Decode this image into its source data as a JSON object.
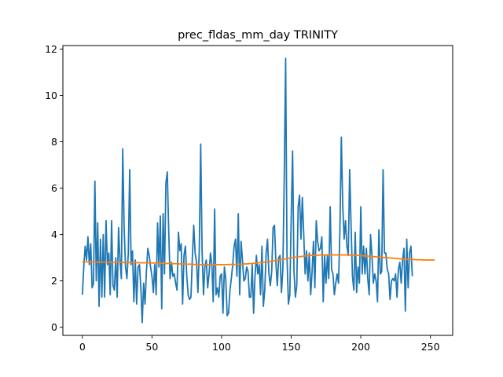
{
  "chart_data": {
    "type": "line",
    "title": "prec_fldas_mm_day TRINITY",
    "xlabel": "",
    "ylabel": "",
    "xlim": [
      -14,
      266
    ],
    "ylim": [
      -0.35,
      12.15
    ],
    "xticks": [
      0,
      50,
      100,
      150,
      200,
      250
    ],
    "yticks": [
      0,
      2,
      4,
      6,
      8,
      10,
      12
    ],
    "grid": false,
    "colors": {
      "raw": "#1f77b4",
      "trend": "#ff7f0e"
    },
    "series": [
      {
        "values": [
          1.4,
          2.6,
          3.5,
          2.9,
          3.9,
          2.7,
          3.6,
          1.7,
          1.9,
          6.3,
          2.0,
          4.5,
          0.9,
          3.8,
          1.3,
          4.0,
          1.3,
          4.6,
          2.7,
          3.2,
          1.4,
          4.6,
          1.8,
          1.6,
          3.0,
          1.3,
          4.3,
          2.9,
          2.1,
          7.7,
          4.3,
          2.6,
          2.1,
          3.2,
          6.8,
          2.7,
          3.3,
          1.1,
          2.9,
          1.0,
          2.6,
          2.7,
          1.7,
          0.2,
          1.9,
          1.0,
          2.4,
          3.4,
          3.1,
          2.6,
          2.2,
          1.5,
          2.7,
          1.4,
          4.5,
          2.6,
          4.8,
          0.8,
          4.9,
          2.3,
          6.2,
          6.7,
          4.2,
          2.1,
          2.8,
          2.2,
          2.3,
          1.9,
          1.6,
          4.1,
          3.3,
          3.6,
          1.0,
          3.1,
          3.5,
          2.2,
          1.4,
          1.2,
          1.3,
          3.0,
          4.4,
          3.2,
          2.8,
          1.5,
          3.4,
          7.9,
          3.3,
          1.4,
          2.6,
          2.9,
          1.7,
          2.3,
          3.2,
          2.7,
          1.1,
          5.1,
          1.4,
          1.7,
          1.3,
          2.2,
          2.3,
          0.6,
          2.6,
          2.1,
          0.5,
          0.6,
          1.6,
          2.1,
          2.7,
          3.5,
          3.8,
          2.2,
          4.9,
          1.4,
          3.7,
          2.9,
          2.0,
          2.1,
          2.6,
          2.4,
          1.3,
          1.3,
          2.7,
          0.6,
          2.2,
          3.1,
          2.3,
          2.7,
          1.4,
          3.5,
          0.9,
          1.6,
          3.2,
          3.8,
          2.3,
          1.8,
          2.4,
          4.3,
          4.4,
          2.8,
          1.8,
          3.0,
          3.1,
          1.5,
          2.5,
          6.4,
          11.6,
          3.0,
          1.0,
          1.4,
          4.7,
          7.6,
          2.4,
          1.3,
          1.8,
          5.2,
          5.7,
          3.8,
          5.6,
          4.0,
          2.3,
          3.3,
          2.0,
          3.2,
          1.4,
          2.4,
          3.7,
          1.7,
          4.6,
          3.7,
          3.3,
          3.4,
          3.9,
          1.1,
          3.1,
          1.9,
          3.1,
          2.1,
          5.2,
          2.5,
          2.3,
          1.4,
          1.9,
          2.3,
          1.9,
          4.2,
          8.2,
          5.3,
          3.8,
          4.6,
          3.5,
          3.1,
          6.8,
          4.4,
          2.2,
          1.6,
          4.1,
          1.5,
          2.6,
          1.9,
          5.2,
          2.3,
          3.5,
          2.3,
          3.4,
          2.1,
          1.4,
          4.0,
          3.1,
          1.9,
          2.3,
          2.0,
          1.1,
          4.2,
          2.3,
          2.4,
          6.8,
          3.2,
          3.2,
          2.5,
          2.3,
          1.2,
          2.0,
          2.1,
          2.0,
          2.3,
          1.3,
          2.5,
          2.8,
          1.9,
          2.9,
          3.4,
          0.7,
          3.8,
          1.7,
          3.2,
          3.5,
          2.2
        ]
      },
      {
        "values": [
          2.82,
          2.82,
          2.82,
          2.82,
          2.82,
          2.82,
          2.82,
          2.82,
          2.82,
          2.82,
          2.81,
          2.81,
          2.81,
          2.81,
          2.81,
          2.81,
          2.81,
          2.81,
          2.81,
          2.81,
          2.8,
          2.8,
          2.8,
          2.8,
          2.8,
          2.8,
          2.8,
          2.8,
          2.8,
          2.8,
          2.79,
          2.79,
          2.79,
          2.79,
          2.79,
          2.79,
          2.79,
          2.79,
          2.79,
          2.79,
          2.78,
          2.78,
          2.78,
          2.78,
          2.78,
          2.78,
          2.78,
          2.78,
          2.78,
          2.78,
          2.77,
          2.77,
          2.77,
          2.77,
          2.77,
          2.76,
          2.76,
          2.76,
          2.76,
          2.76,
          2.75,
          2.75,
          2.75,
          2.75,
          2.75,
          2.74,
          2.74,
          2.74,
          2.74,
          2.74,
          2.73,
          2.73,
          2.73,
          2.73,
          2.73,
          2.72,
          2.72,
          2.72,
          2.72,
          2.72,
          2.71,
          2.71,
          2.71,
          2.71,
          2.71,
          2.7,
          2.7,
          2.7,
          2.7,
          2.7,
          2.7,
          2.7,
          2.7,
          2.7,
          2.7,
          2.7,
          2.7,
          2.7,
          2.7,
          2.7,
          2.7,
          2.7,
          2.7,
          2.7,
          2.7,
          2.7,
          2.71,
          2.71,
          2.71,
          2.71,
          2.71,
          2.72,
          2.72,
          2.72,
          2.72,
          2.72,
          2.73,
          2.73,
          2.73,
          2.74,
          2.74,
          2.75,
          2.75,
          2.76,
          2.76,
          2.77,
          2.78,
          2.78,
          2.79,
          2.79,
          2.8,
          2.81,
          2.82,
          2.82,
          2.83,
          2.84,
          2.85,
          2.86,
          2.87,
          2.88,
          2.89,
          2.9,
          2.91,
          2.92,
          2.93,
          2.94,
          2.95,
          2.96,
          2.97,
          2.98,
          2.99,
          3.0,
          3.01,
          3.02,
          3.03,
          3.04,
          3.05,
          3.05,
          3.06,
          3.07,
          3.08,
          3.08,
          3.09,
          3.09,
          3.1,
          3.1,
          3.1,
          3.11,
          3.11,
          3.11,
          3.11,
          3.12,
          3.12,
          3.12,
          3.12,
          3.12,
          3.12,
          3.12,
          3.12,
          3.12,
          3.12,
          3.12,
          3.12,
          3.12,
          3.12,
          3.12,
          3.12,
          3.12,
          3.12,
          3.12,
          3.12,
          3.12,
          3.11,
          3.11,
          3.11,
          3.11,
          3.1,
          3.1,
          3.1,
          3.09,
          3.09,
          3.09,
          3.08,
          3.08,
          3.07,
          3.07,
          3.06,
          3.06,
          3.05,
          3.05,
          3.04,
          3.04,
          3.03,
          3.03,
          3.02,
          3.02,
          3.01,
          3.01,
          3.0,
          3.0,
          2.99,
          2.99,
          2.98,
          2.98,
          2.97,
          2.97,
          2.96,
          2.96,
          2.95,
          2.95,
          2.94,
          2.94,
          2.94,
          2.93,
          2.93,
          2.93,
          2.92,
          2.92,
          2.92,
          2.92,
          2.91,
          2.91,
          2.91,
          2.91,
          2.91,
          2.9,
          2.9,
          2.9,
          2.9,
          2.9,
          2.9,
          2.9,
          2.9,
          2.9
        ]
      }
    ]
  }
}
